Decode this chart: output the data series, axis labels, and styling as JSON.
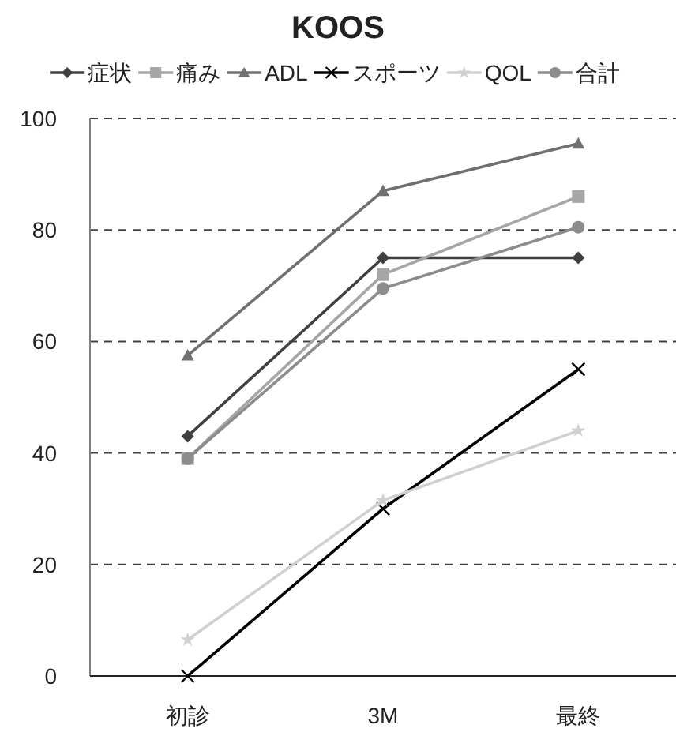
{
  "chart_data": {
    "type": "line",
    "title": "KOOS",
    "categories": [
      "初診",
      "3M",
      "最終"
    ],
    "series": [
      {
        "name": "症状",
        "color": "#404040",
        "marker": "diamond",
        "values": [
          43,
          75,
          75
        ]
      },
      {
        "name": "痛み",
        "color": "#a6a6a6",
        "marker": "square",
        "values": [
          39,
          72,
          86
        ]
      },
      {
        "name": "ADL",
        "color": "#707070",
        "marker": "triangle",
        "values": [
          57.5,
          87,
          95.5
        ]
      },
      {
        "name": "スポーツ",
        "color": "#000000",
        "marker": "cross",
        "values": [
          0,
          30,
          55
        ]
      },
      {
        "name": "QOL",
        "color": "#d0d0d0",
        "marker": "star",
        "values": [
          6.5,
          31.5,
          44
        ]
      },
      {
        "name": "合計",
        "color": "#8c8c8c",
        "marker": "circle",
        "values": [
          39,
          69.5,
          80.5
        ]
      }
    ],
    "ylim": [
      0,
      100
    ],
    "yticks": [
      0,
      20,
      40,
      60,
      80,
      100
    ],
    "grid": "y",
    "legend": "top",
    "line_style": "solid"
  }
}
